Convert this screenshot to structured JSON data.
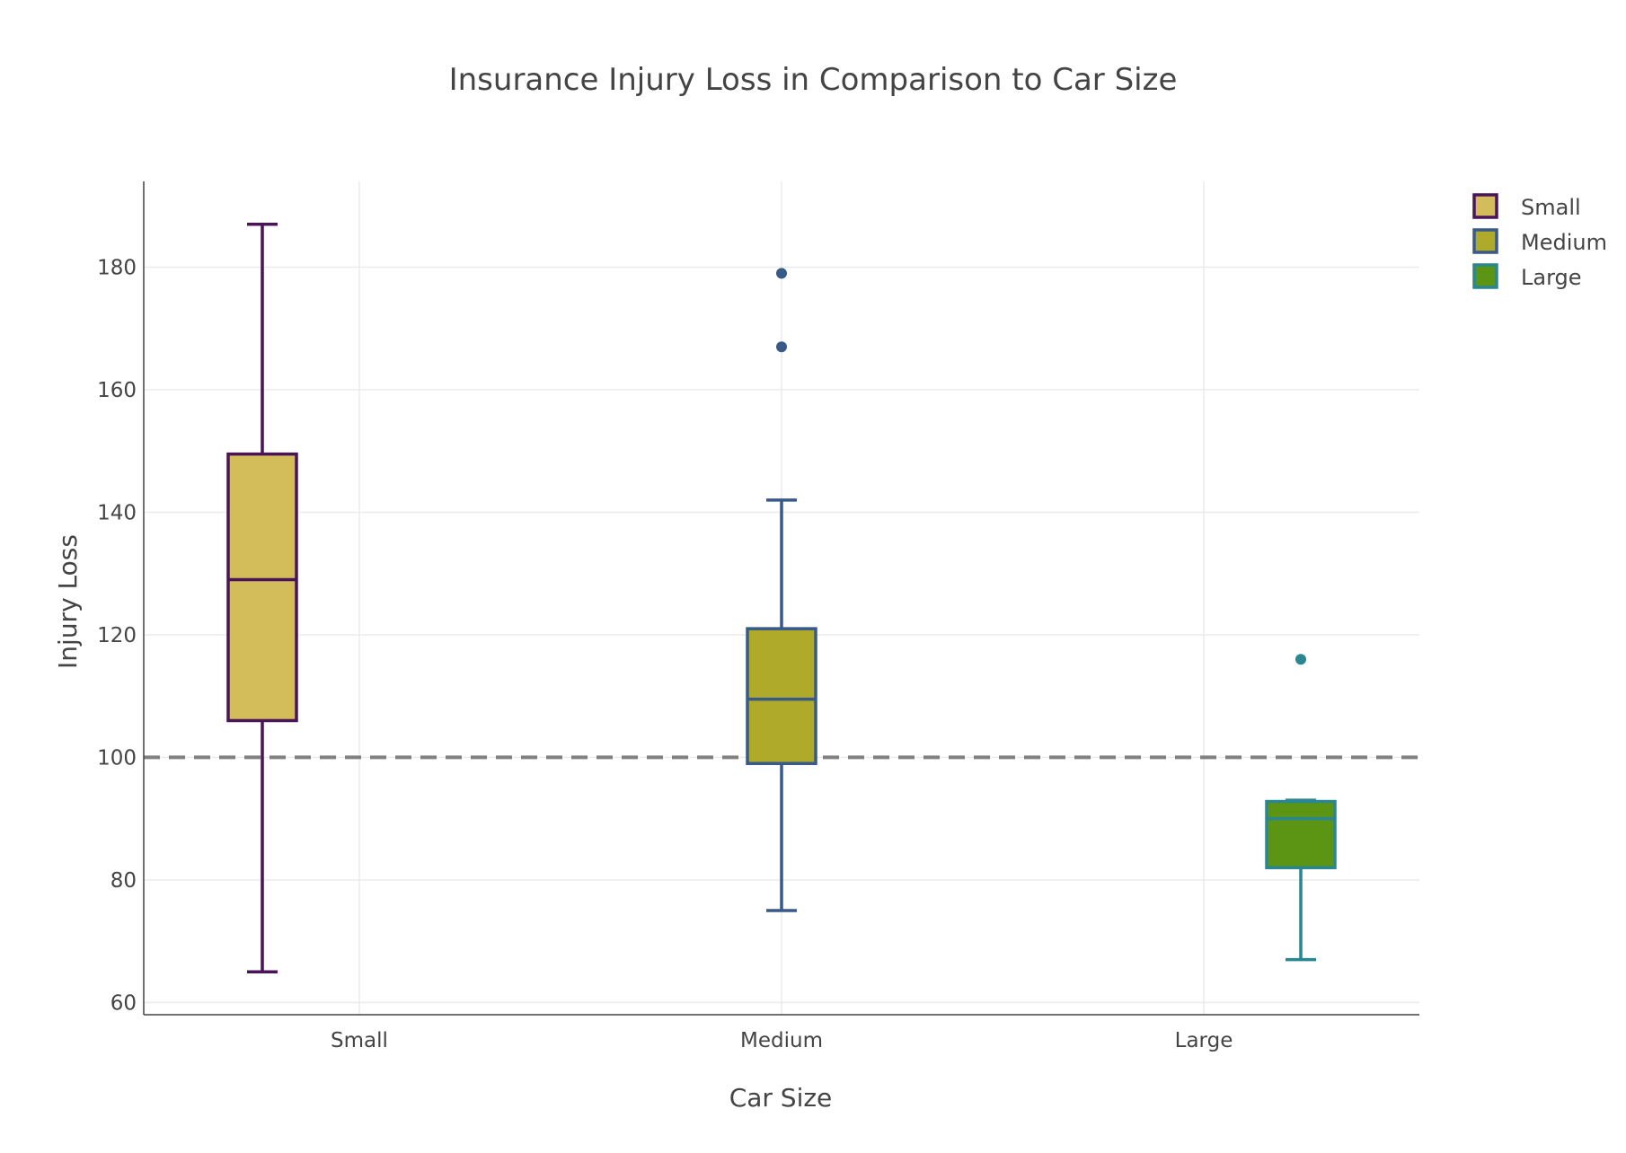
{
  "chart_data": {
    "type": "box",
    "title": "Insurance Injury Loss in Comparison to Car Size",
    "xlabel": "Car Size",
    "ylabel": "Injury Loss",
    "categories": [
      "Small",
      "Medium",
      "Large"
    ],
    "ylim": [
      58,
      194
    ],
    "yticks": [
      60,
      80,
      100,
      120,
      140,
      160,
      180
    ],
    "grid": true,
    "legend_position": "top-right",
    "reference_line": {
      "y": 100,
      "style": "dashed",
      "color": "#808080"
    },
    "series": [
      {
        "name": "Small",
        "category": "Small",
        "fill": "#d2bd5a",
        "line": "#4a1458",
        "min": 65,
        "q1": 106,
        "median": 129,
        "q3": 149.5,
        "max": 187,
        "outliers": []
      },
      {
        "name": "Medium",
        "category": "Medium",
        "fill": "#b0aa2a",
        "line": "#385a88",
        "min": 75,
        "q1": 99,
        "median": 109.5,
        "q3": 121,
        "max": 142,
        "outliers": [
          167,
          179
        ]
      },
      {
        "name": "Large",
        "category": "Large",
        "fill": "#5c9414",
        "line": "#2a8690",
        "min": 67,
        "q1": 82,
        "median": 90,
        "q3": 92.8,
        "max": 93,
        "outliers": [
          116
        ]
      }
    ]
  }
}
